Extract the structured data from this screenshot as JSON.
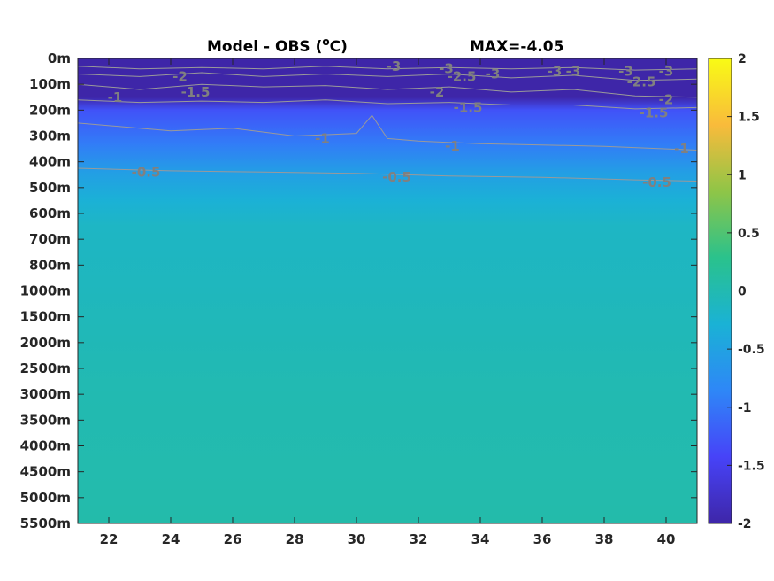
{
  "chart_data": {
    "type": "heatmap",
    "title_left": "Model - OBS (",
    "title_degree": "o",
    "title_unit": "C)",
    "title_right": "MAX=-4.05",
    "x_ticks": [
      22,
      24,
      26,
      28,
      30,
      32,
      34,
      36,
      38,
      40
    ],
    "xlim": [
      21,
      41
    ],
    "y_ticks": [
      "0m",
      "100m",
      "200m",
      "300m",
      "400m",
      "500m",
      "600m",
      "700m",
      "800m",
      "1000m",
      "1500m",
      "2000m",
      "2500m",
      "3000m",
      "3500m",
      "4000m",
      "4500m",
      "5000m",
      "5500m"
    ],
    "colorbar": {
      "ticks": [
        "2",
        "1.5",
        "1",
        "0.5",
        "0",
        "-0.5",
        "-1",
        "-1.5",
        "-2"
      ],
      "clim": [
        -2,
        2
      ],
      "colormap": [
        "#3e26a8",
        "#4743f8",
        "#2e87f7",
        "#1ab2d5",
        "#2ac28c",
        "#8fc547",
        "#f9bb3b",
        "#f9fb15"
      ]
    },
    "bands": [
      {
        "depth_index": 0.0,
        "value": -2.0
      },
      {
        "depth_index": 1.5,
        "value": -2.0
      },
      {
        "depth_index": 2.0,
        "value": -1.3
      },
      {
        "depth_index": 3.3,
        "value": -0.95
      },
      {
        "depth_index": 4.4,
        "value": -0.55
      },
      {
        "depth_index": 5.5,
        "value": -0.3
      },
      {
        "depth_index": 6.5,
        "value": -0.15
      },
      {
        "depth_index": 9.0,
        "value": -0.1
      },
      {
        "depth_index": 10.5,
        "value": -0.06
      },
      {
        "depth_index": 13.0,
        "value": 0.0
      },
      {
        "depth_index": 16.0,
        "value": 0.02
      },
      {
        "depth_index": 18.0,
        "value": 0.05
      }
    ],
    "contour_labels": [
      {
        "text": "-3",
        "x": 36.4,
        "d": 0.5
      },
      {
        "text": "-2",
        "x": 24.3,
        "d": 0.7
      },
      {
        "text": "-1.5",
        "x": 24.8,
        "d": 1.3
      },
      {
        "text": "-1",
        "x": 22.2,
        "d": 1.5
      },
      {
        "text": "-3",
        "x": 31.2,
        "d": 0.3
      },
      {
        "text": "-3",
        "x": 32.9,
        "d": 0.4
      },
      {
        "text": "-2.5",
        "x": 33.4,
        "d": 0.7
      },
      {
        "text": "-2",
        "x": 32.6,
        "d": 1.3
      },
      {
        "text": "-1.5",
        "x": 33.6,
        "d": 1.9
      },
      {
        "text": "-3",
        "x": 34.4,
        "d": 0.6
      },
      {
        "text": "-3",
        "x": 37.0,
        "d": 0.5
      },
      {
        "text": "-3",
        "x": 38.7,
        "d": 0.5
      },
      {
        "text": "-3",
        "x": 40.0,
        "d": 0.5
      },
      {
        "text": "-2.5",
        "x": 39.2,
        "d": 0.9
      },
      {
        "text": "-2",
        "x": 40.0,
        "d": 1.6
      },
      {
        "text": "-1.5",
        "x": 39.6,
        "d": 2.1
      },
      {
        "text": "-1",
        "x": 28.9,
        "d": 3.1
      },
      {
        "text": "-1",
        "x": 33.1,
        "d": 3.4
      },
      {
        "text": "-1",
        "x": 40.5,
        "d": 3.5
      },
      {
        "text": "-0.5",
        "x": 23.2,
        "d": 4.4
      },
      {
        "text": "-0.5",
        "x": 31.3,
        "d": 4.6
      },
      {
        "text": "-0.5",
        "x": 39.7,
        "d": 4.8
      }
    ],
    "contour_lines": [
      {
        "level": -3,
        "points": [
          [
            21,
            0.3
          ],
          [
            23,
            0.4
          ],
          [
            25,
            0.35
          ],
          [
            27,
            0.4
          ],
          [
            29,
            0.3
          ],
          [
            31,
            0.4
          ],
          [
            33,
            0.35
          ],
          [
            35,
            0.4
          ],
          [
            37,
            0.35
          ],
          [
            39,
            0.45
          ],
          [
            41,
            0.4
          ]
        ]
      },
      {
        "level": -2.5,
        "points": [
          [
            21,
            0.6
          ],
          [
            23,
            0.7
          ],
          [
            25,
            0.55
          ],
          [
            27,
            0.7
          ],
          [
            29,
            0.6
          ],
          [
            31,
            0.7
          ],
          [
            33,
            0.6
          ],
          [
            35,
            0.75
          ],
          [
            37,
            0.65
          ],
          [
            39,
            0.85
          ],
          [
            41,
            0.8
          ]
        ]
      },
      {
        "level": -2,
        "points": [
          [
            21,
            1.0
          ],
          [
            23,
            1.2
          ],
          [
            25,
            1.0
          ],
          [
            27,
            1.1
          ],
          [
            29,
            1.05
          ],
          [
            31,
            1.2
          ],
          [
            33,
            1.1
          ],
          [
            35,
            1.3
          ],
          [
            37,
            1.2
          ],
          [
            39,
            1.45
          ],
          [
            41,
            1.5
          ]
        ]
      },
      {
        "level": -1.5,
        "points": [
          [
            21,
            1.6
          ],
          [
            23,
            1.7
          ],
          [
            25,
            1.65
          ],
          [
            27,
            1.7
          ],
          [
            29,
            1.6
          ],
          [
            31,
            1.75
          ],
          [
            33,
            1.7
          ],
          [
            35,
            1.8
          ],
          [
            37,
            1.8
          ],
          [
            39,
            1.95
          ],
          [
            41,
            1.9
          ]
        ]
      },
      {
        "level": -1,
        "points": [
          [
            21,
            2.5
          ],
          [
            24,
            2.8
          ],
          [
            26,
            2.7
          ],
          [
            28,
            3.0
          ],
          [
            30,
            2.9
          ],
          [
            30.5,
            2.2
          ],
          [
            31,
            3.1
          ],
          [
            32,
            3.2
          ],
          [
            34,
            3.3
          ],
          [
            36,
            3.35
          ],
          [
            38,
            3.4
          ],
          [
            41,
            3.55
          ]
        ]
      },
      {
        "level": -0.5,
        "points": [
          [
            21,
            4.25
          ],
          [
            24,
            4.35
          ],
          [
            27,
            4.4
          ],
          [
            30,
            4.45
          ],
          [
            33,
            4.55
          ],
          [
            36,
            4.6
          ],
          [
            39,
            4.7
          ],
          [
            41,
            4.75
          ]
        ]
      }
    ]
  }
}
